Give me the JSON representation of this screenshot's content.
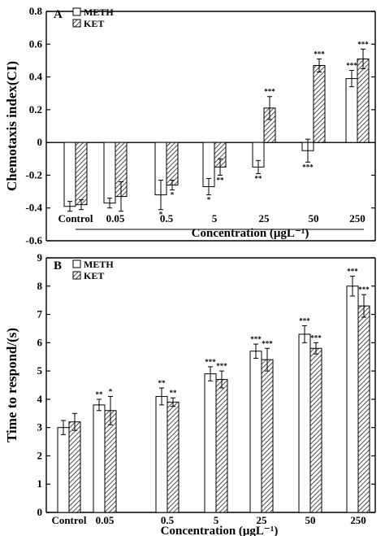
{
  "chart_data": [
    {
      "panel": "A",
      "type": "bar",
      "categories": [
        "Control",
        "0.05",
        "0.5",
        "5",
        "25",
        "50",
        "250"
      ],
      "series": [
        {
          "name": "METH",
          "values": [
            -0.39,
            -0.37,
            -0.32,
            -0.27,
            -0.15,
            -0.05,
            0.39
          ],
          "errors": [
            0.03,
            0.03,
            0.09,
            0.05,
            0.04,
            0.07,
            0.05
          ],
          "sig": [
            "",
            "",
            "*",
            "*",
            "**",
            "***",
            "***"
          ]
        },
        {
          "name": "KET",
          "values": [
            -0.38,
            -0.33,
            -0.26,
            -0.15,
            0.21,
            0.47,
            0.51
          ],
          "errors": [
            0.03,
            0.09,
            0.03,
            0.05,
            0.07,
            0.04,
            0.06
          ],
          "sig": [
            "",
            "",
            "*",
            "**",
            "***",
            "***",
            "***"
          ]
        }
      ],
      "xlabel": "Concentration (μgL⁻¹)",
      "ylabel": "Chemotaxis index(CI)",
      "ylim": [
        -0.6,
        0.8
      ],
      "yticks": [
        "-0.6",
        "-0.4",
        "-0.2",
        "0",
        "0.2",
        "0.4",
        "0.6",
        "0.8"
      ],
      "legend_position": "top-left"
    },
    {
      "panel": "B",
      "type": "bar",
      "categories": [
        "Control",
        "0.05",
        "0.5",
        "5",
        "25",
        "50",
        "250"
      ],
      "series": [
        {
          "name": "METH",
          "values": [
            3.0,
            3.8,
            4.1,
            4.9,
            5.7,
            6.3,
            8.0
          ],
          "errors": [
            0.25,
            0.2,
            0.3,
            0.25,
            0.25,
            0.3,
            0.35
          ],
          "sig": [
            "",
            "**",
            "**",
            "***",
            "***",
            "***",
            "***"
          ]
        },
        {
          "name": "KET",
          "values": [
            3.2,
            3.6,
            3.9,
            4.7,
            5.4,
            5.8,
            7.3
          ],
          "errors": [
            0.3,
            0.5,
            0.15,
            0.3,
            0.4,
            0.2,
            0.4
          ],
          "sig": [
            "",
            "*",
            "**",
            "***",
            "***",
            "***",
            "***"
          ]
        }
      ],
      "xlabel": "Concentration (μgL⁻¹)",
      "ylabel": "Time to respond/(s)",
      "ylim": [
        0,
        9
      ],
      "yticks": [
        "0",
        "1",
        "2",
        "3",
        "4",
        "5",
        "6",
        "7",
        "8",
        "9"
      ],
      "legend_position": "top-left"
    }
  ]
}
